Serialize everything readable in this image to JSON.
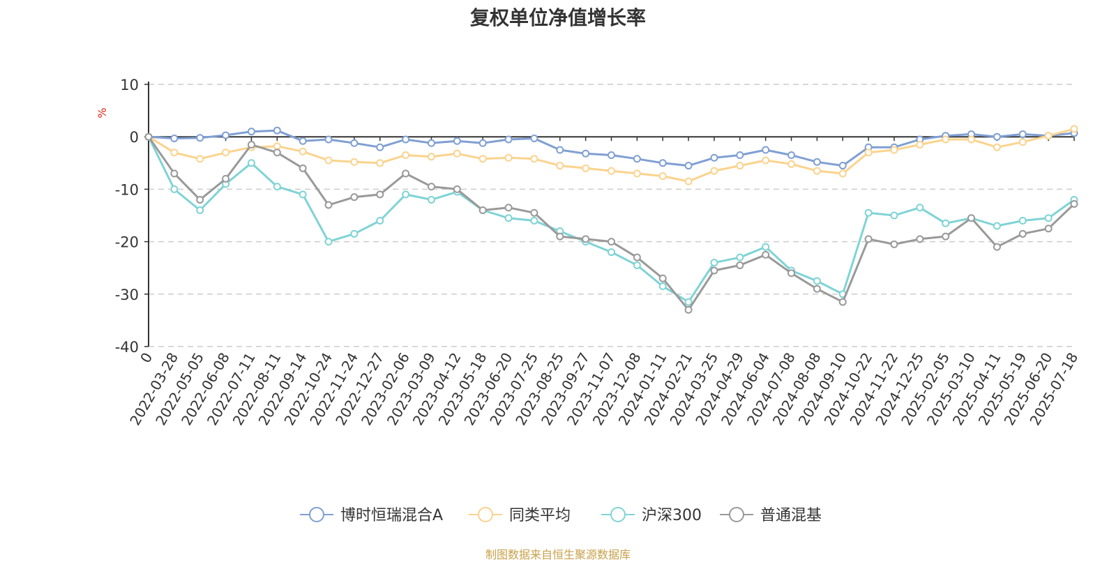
{
  "chart_data": {
    "type": "line",
    "title": "复权单位净值增长率",
    "ylabel": "%",
    "ylim": [
      -40,
      10
    ],
    "yticks": [
      10,
      0,
      -10,
      -20,
      -30,
      -40
    ],
    "grid": true,
    "legend_position": "bottom",
    "x": [
      "0",
      "2022-03-28",
      "2022-05-05",
      "2022-06-08",
      "2022-07-11",
      "2022-08-11",
      "2022-09-14",
      "2022-10-24",
      "2022-11-24",
      "2022-12-27",
      "2023-02-06",
      "2023-03-09",
      "2023-04-12",
      "2023-05-18",
      "2023-06-20",
      "2023-07-25",
      "2023-08-25",
      "2023-09-27",
      "2023-11-07",
      "2023-12-08",
      "2024-01-11",
      "2024-02-21",
      "2024-03-25",
      "2024-04-29",
      "2024-06-04",
      "2024-07-08",
      "2024-08-08",
      "2024-09-10",
      "2024-10-22",
      "2024-11-22",
      "2024-12-25",
      "2025-02-05",
      "2025-03-10",
      "2025-04-11",
      "2025-05-19",
      "2025-06-20",
      "2025-07-18"
    ],
    "series": [
      {
        "name": "博时恒瑞混合A",
        "color": "#7f9fd3",
        "values": [
          0,
          -0.3,
          -0.2,
          0.3,
          1.0,
          1.2,
          -0.8,
          -0.5,
          -1.2,
          -2.0,
          -0.5,
          -1.2,
          -0.8,
          -1.2,
          -0.5,
          -0.3,
          -2.5,
          -3.2,
          -3.5,
          -4.2,
          -5.0,
          -5.5,
          -4.0,
          -3.5,
          -2.5,
          -3.5,
          -4.8,
          -5.5,
          -2.0,
          -2.0,
          -0.5,
          0.2,
          0.5,
          0.0,
          0.5,
          0.2,
          0.7
        ]
      },
      {
        "name": "同类平均",
        "color": "#fbd38d",
        "values": [
          0,
          -3.0,
          -4.2,
          -3.0,
          -2.0,
          -1.8,
          -2.8,
          -4.5,
          -4.8,
          -5.0,
          -3.5,
          -3.8,
          -3.2,
          -4.2,
          -4.0,
          -4.2,
          -5.5,
          -6.0,
          -6.5,
          -7.0,
          -7.5,
          -8.5,
          -6.5,
          -5.5,
          -4.5,
          -5.2,
          -6.5,
          -7.0,
          -3.0,
          -2.5,
          -1.5,
          -0.5,
          -0.5,
          -2.0,
          -1.0,
          0.2,
          1.5
        ]
      },
      {
        "name": "沪深300",
        "color": "#7fd3d5",
        "values": [
          0,
          -10.0,
          -14.0,
          -9.0,
          -5.0,
          -9.5,
          -11.0,
          -20.0,
          -18.5,
          -16.0,
          -11.0,
          -12.0,
          -10.5,
          -14.0,
          -15.5,
          -16.0,
          -18.0,
          -20.0,
          -22.0,
          -24.5,
          -28.5,
          -31.5,
          -24.0,
          -23.0,
          -21.0,
          -25.5,
          -27.5,
          -30.0,
          -14.5,
          -15.0,
          -13.5,
          -16.5,
          -15.5,
          -17.0,
          -16.0,
          -15.5,
          -12.0
        ]
      },
      {
        "name": "普通混基",
        "color": "#999999",
        "values": [
          0,
          -7.0,
          -12.0,
          -8.0,
          -1.5,
          -3.0,
          -6.0,
          -13.0,
          -11.5,
          -11.0,
          -7.0,
          -9.5,
          -10.0,
          -14.0,
          -13.5,
          -14.5,
          -19.0,
          -19.5,
          -20.0,
          -23.0,
          -27.0,
          -33.0,
          -25.5,
          -24.5,
          -22.5,
          -26.0,
          -29.0,
          -31.5,
          -19.5,
          -20.5,
          -19.5,
          -19.0,
          -15.5,
          -21.0,
          -18.5,
          -17.5,
          -12.8
        ]
      }
    ]
  },
  "source_note": "制图数据来自恒生聚源数据库"
}
